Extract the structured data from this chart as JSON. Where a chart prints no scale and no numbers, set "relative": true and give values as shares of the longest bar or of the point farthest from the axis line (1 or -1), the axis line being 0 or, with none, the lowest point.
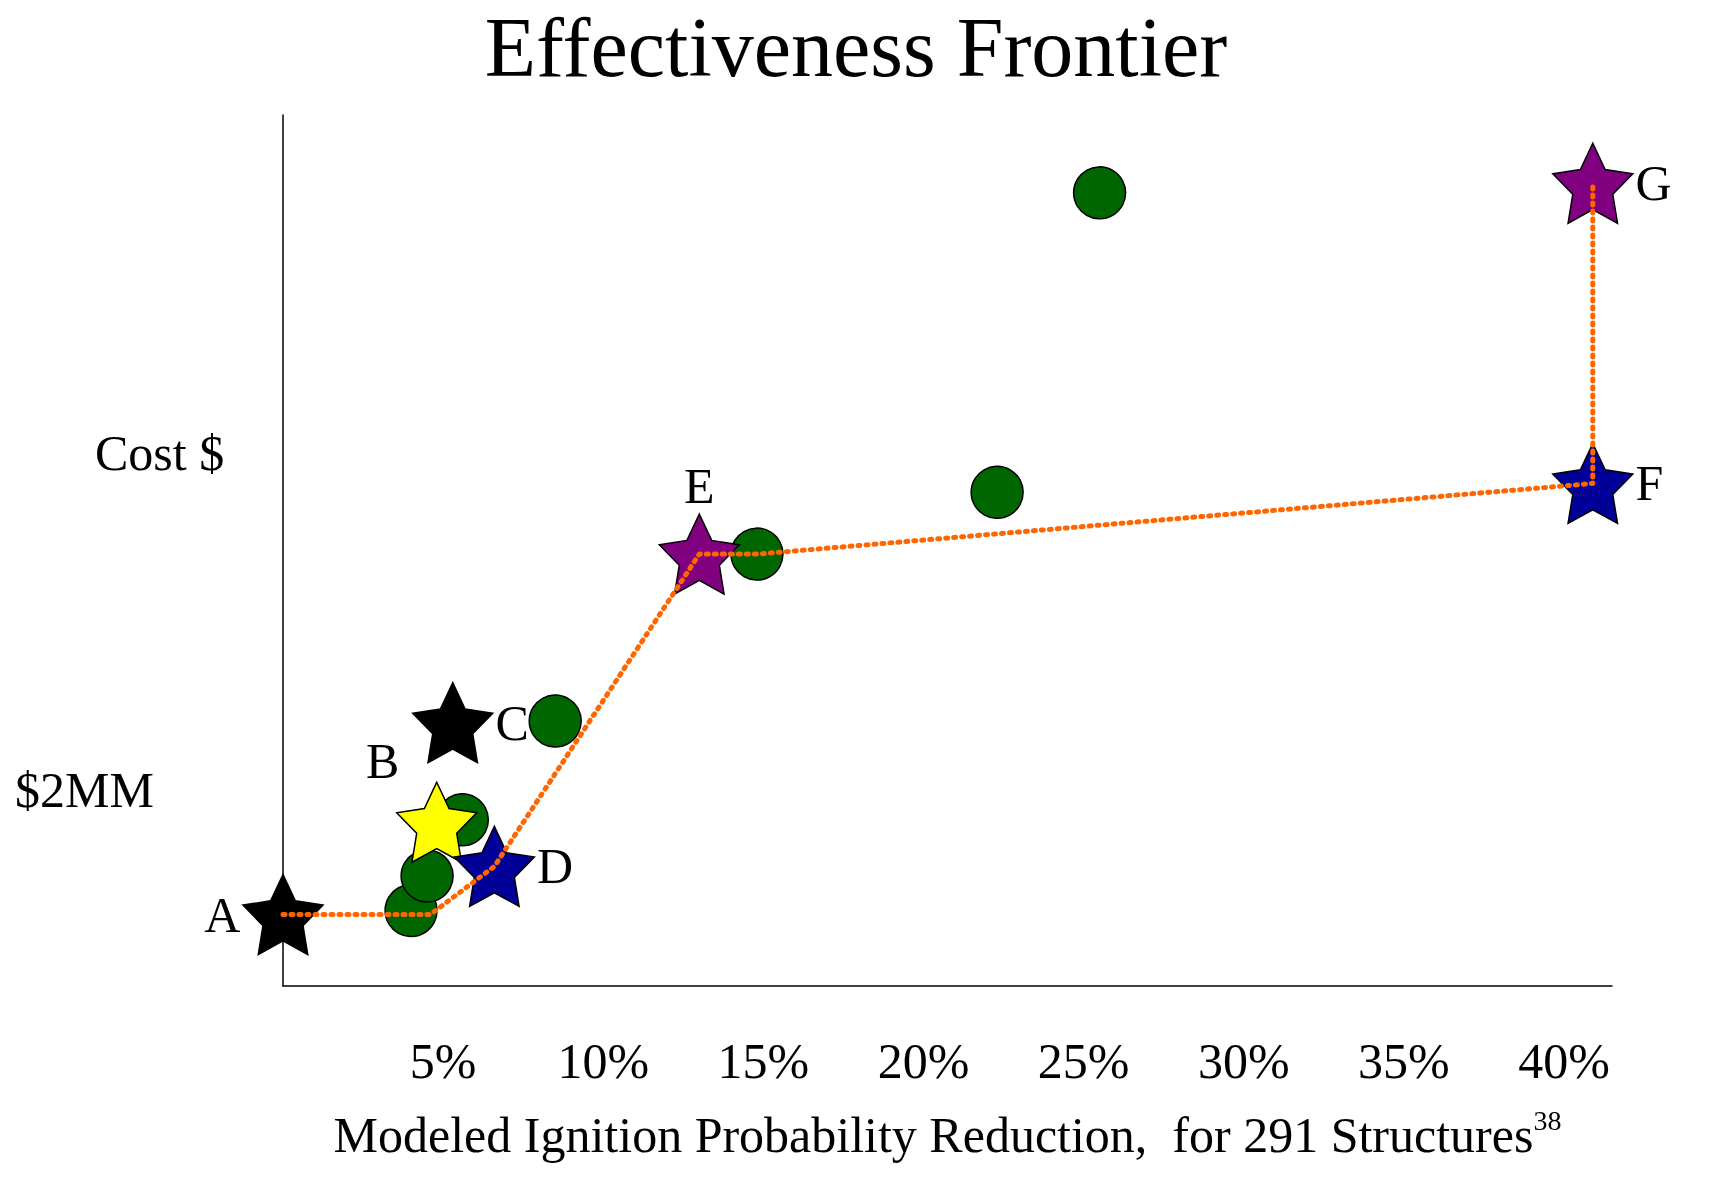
{
  "chart_data": {
    "type": "scatter",
    "title": "Effectiveness Frontier",
    "xlabel": "Modeled Ignition Probability Reduction,  for 291 Structures$^{38}$",
    "ylabel": "Cost $",
    "relative": true,
    "xlim": [
      0,
      41.5
    ],
    "xticks": [
      {
        "value": 5,
        "label": "5%"
      },
      {
        "value": 10,
        "label": "10%"
      },
      {
        "value": 15,
        "label": "15%"
      },
      {
        "value": 20,
        "label": "20%"
      },
      {
        "value": 25,
        "label": "25%"
      },
      {
        "value": 30,
        "label": "30%"
      },
      {
        "value": 35,
        "label": "35%"
      },
      {
        "value": 40,
        "label": "40%"
      }
    ],
    "annotations": [
      "$2MM"
    ],
    "grid": false,
    "legend": false,
    "series": [
      {
        "type": "line",
        "color": "#ff6600",
        "line_style": "dotted",
        "marker": "none",
        "x": [
          0,
          4.6,
          6.6,
          13.0,
          14.8,
          40.9,
          40.9
        ],
        "values": [
          0.089,
          0.089,
          0.149,
          0.538,
          0.538,
          0.626,
          1
        ]
      },
      {
        "color": "#006600",
        "marker": "circle",
        "x": [
          4.0,
          4.5,
          5.6,
          8.5,
          14.8,
          22.3,
          25.5
        ],
        "values": [
          0.094,
          0.137,
          0.207,
          0.33,
          0.538,
          0.615,
          0.988
        ]
      },
      {
        "name": "A",
        "color": "#000000",
        "marker": "star",
        "x": [
          0
        ],
        "values": [
          0.089
        ]
      },
      {
        "name": "B",
        "color": "#ffff00",
        "marker": "star",
        "x": [
          4.8
        ],
        "values": [
          0.204
        ]
      },
      {
        "name": "C",
        "color": "#000000",
        "marker": "star",
        "x": [
          5.3
        ],
        "values": [
          0.328
        ]
      },
      {
        "name": "D",
        "color": "#000099",
        "marker": "star",
        "x": [
          6.6
        ],
        "values": [
          0.149
        ]
      },
      {
        "name": "E",
        "color": "#800080",
        "marker": "star",
        "x": [
          13.0
        ],
        "values": [
          0.538
        ]
      },
      {
        "name": "F",
        "color": "#000099",
        "marker": "star",
        "x": [
          40.9
        ],
        "values": [
          0.626
        ]
      },
      {
        "name": "G",
        "color": "#800080",
        "marker": "star",
        "x": [
          40.9
        ],
        "values": [
          1
        ]
      }
    ]
  }
}
